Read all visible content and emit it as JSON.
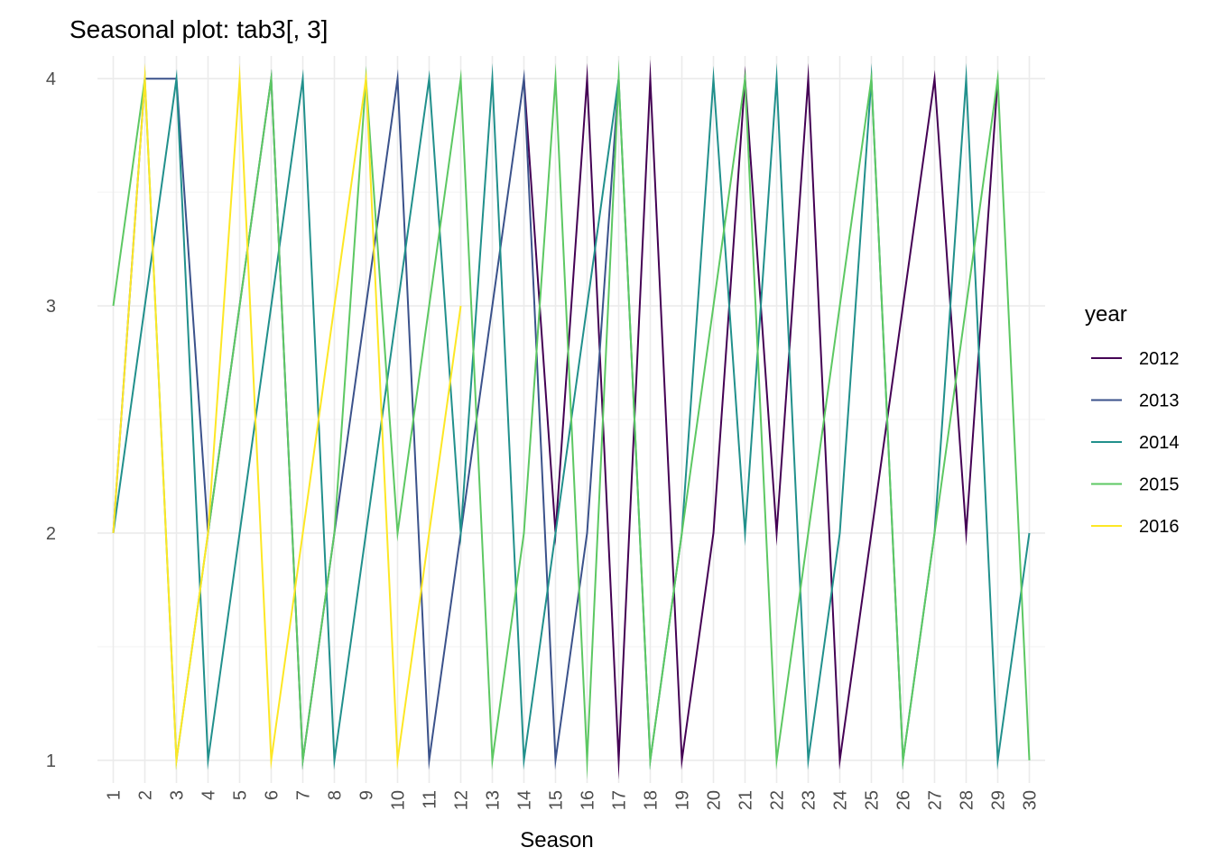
{
  "chart_data": {
    "type": "line",
    "title": "Seasonal plot: tab3[, 3]",
    "xlabel": "Season",
    "ylabel": "",
    "x": [
      1,
      2,
      3,
      4,
      5,
      6,
      7,
      8,
      9,
      10,
      11,
      12,
      13,
      14,
      15,
      16,
      17,
      18,
      19,
      20,
      21,
      22,
      23,
      24,
      25,
      26,
      27,
      28,
      29,
      30
    ],
    "x_tick_labels": [
      "1",
      "2",
      "3",
      "4",
      "5",
      "6",
      "7",
      "8",
      "9",
      "10",
      "11",
      "12",
      "13",
      "14",
      "15",
      "16",
      "17",
      "18",
      "19",
      "20",
      "21",
      "22",
      "23",
      "24",
      "25",
      "26",
      "27",
      "28",
      "29",
      "30"
    ],
    "y_ticks": [
      "1",
      "2",
      "3",
      "4"
    ],
    "ylim": [
      0.9,
      4.1
    ],
    "xlim": [
      0.5,
      30.5
    ],
    "grid": true,
    "legend": {
      "title": "year",
      "position": "right"
    },
    "series": [
      {
        "name": "2012",
        "color": "#440154",
        "x": [
          14,
          15,
          16,
          17,
          18,
          19,
          20,
          21,
          22,
          23,
          24,
          25,
          26,
          27,
          28,
          29
        ],
        "values": [
          4,
          2,
          4,
          1,
          4,
          1,
          2,
          4,
          2,
          4,
          1,
          2,
          3,
          4,
          2,
          4
        ]
      },
      {
        "name": "2013",
        "color": "#3B528B",
        "x": [
          1,
          2,
          3,
          4,
          5,
          6,
          7,
          8,
          9,
          10,
          11,
          12,
          13,
          14,
          15,
          16,
          17
        ],
        "values": [
          2,
          4,
          4,
          2,
          3,
          4,
          1,
          2,
          3,
          4,
          1,
          2,
          3,
          4,
          1,
          2,
          4
        ]
      },
      {
        "name": "2014",
        "color": "#21908C",
        "x": [
          1,
          2,
          3,
          4,
          5,
          6,
          7,
          8,
          9,
          10,
          11,
          12,
          13,
          14,
          15,
          16,
          17,
          18,
          19,
          20,
          21,
          22,
          23,
          24,
          25,
          26,
          27,
          28,
          29,
          30
        ],
        "values": [
          2,
          3,
          4,
          1,
          2,
          3,
          4,
          1,
          2,
          3,
          4,
          2,
          4,
          1,
          2,
          3,
          4,
          1,
          2,
          4,
          2,
          4,
          1,
          2,
          4,
          1,
          2,
          4,
          1,
          2
        ]
      },
      {
        "name": "2015",
        "color": "#5DC863",
        "x": [
          1,
          2,
          3,
          4,
          5,
          6,
          7,
          8,
          9,
          10,
          11,
          12,
          13,
          14,
          15,
          16,
          17,
          18,
          19,
          20,
          21,
          22,
          23,
          24,
          25,
          26,
          27,
          28,
          29,
          30
        ],
        "values": [
          3,
          4,
          1,
          2,
          3,
          4,
          1,
          2,
          4,
          2,
          3,
          4,
          1,
          2,
          4,
          1,
          4,
          1,
          2,
          3,
          4,
          1,
          2,
          3,
          4,
          1,
          2,
          3,
          4,
          1
        ]
      },
      {
        "name": "2016",
        "color": "#FDE725",
        "x": [
          1,
          2,
          3,
          4,
          5,
          6,
          7,
          8,
          9,
          10,
          11,
          12
        ],
        "values": [
          2,
          4,
          1,
          2,
          4,
          1,
          2,
          3,
          4,
          1,
          2,
          3
        ]
      }
    ]
  }
}
